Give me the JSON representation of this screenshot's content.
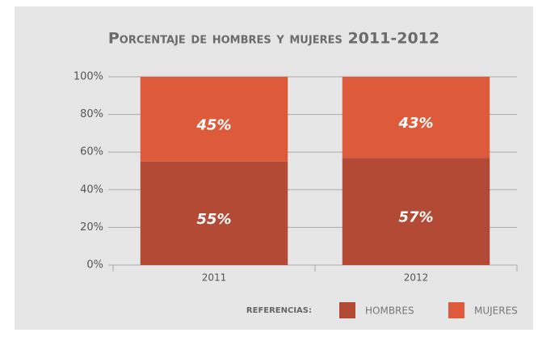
{
  "chart_data": {
    "type": "stacked_bar",
    "title": "Porcentaje de hombres y mujeres 2011-2012",
    "categories": [
      "2011",
      "2012"
    ],
    "series": [
      {
        "name": "HOMBRES",
        "color": "#b34a35",
        "values": [
          55,
          57
        ],
        "value_labels": [
          "55%",
          "57%"
        ]
      },
      {
        "name": "MUJERES",
        "color": "#dd5a3a",
        "values": [
          45,
          43
        ],
        "value_labels": [
          "45%",
          "43%"
        ]
      }
    ],
    "ylim": [
      0,
      100
    ],
    "yticks": [
      {
        "value": 0,
        "label": "0%"
      },
      {
        "value": 20,
        "label": "20%"
      },
      {
        "value": 40,
        "label": "40%"
      },
      {
        "value": 60,
        "label": "60%"
      },
      {
        "value": 80,
        "label": "80%"
      },
      {
        "value": 100,
        "label": "100%"
      }
    ],
    "grid": true,
    "legend_title": "REFERENCIAS:",
    "legend_position": "bottom"
  }
}
